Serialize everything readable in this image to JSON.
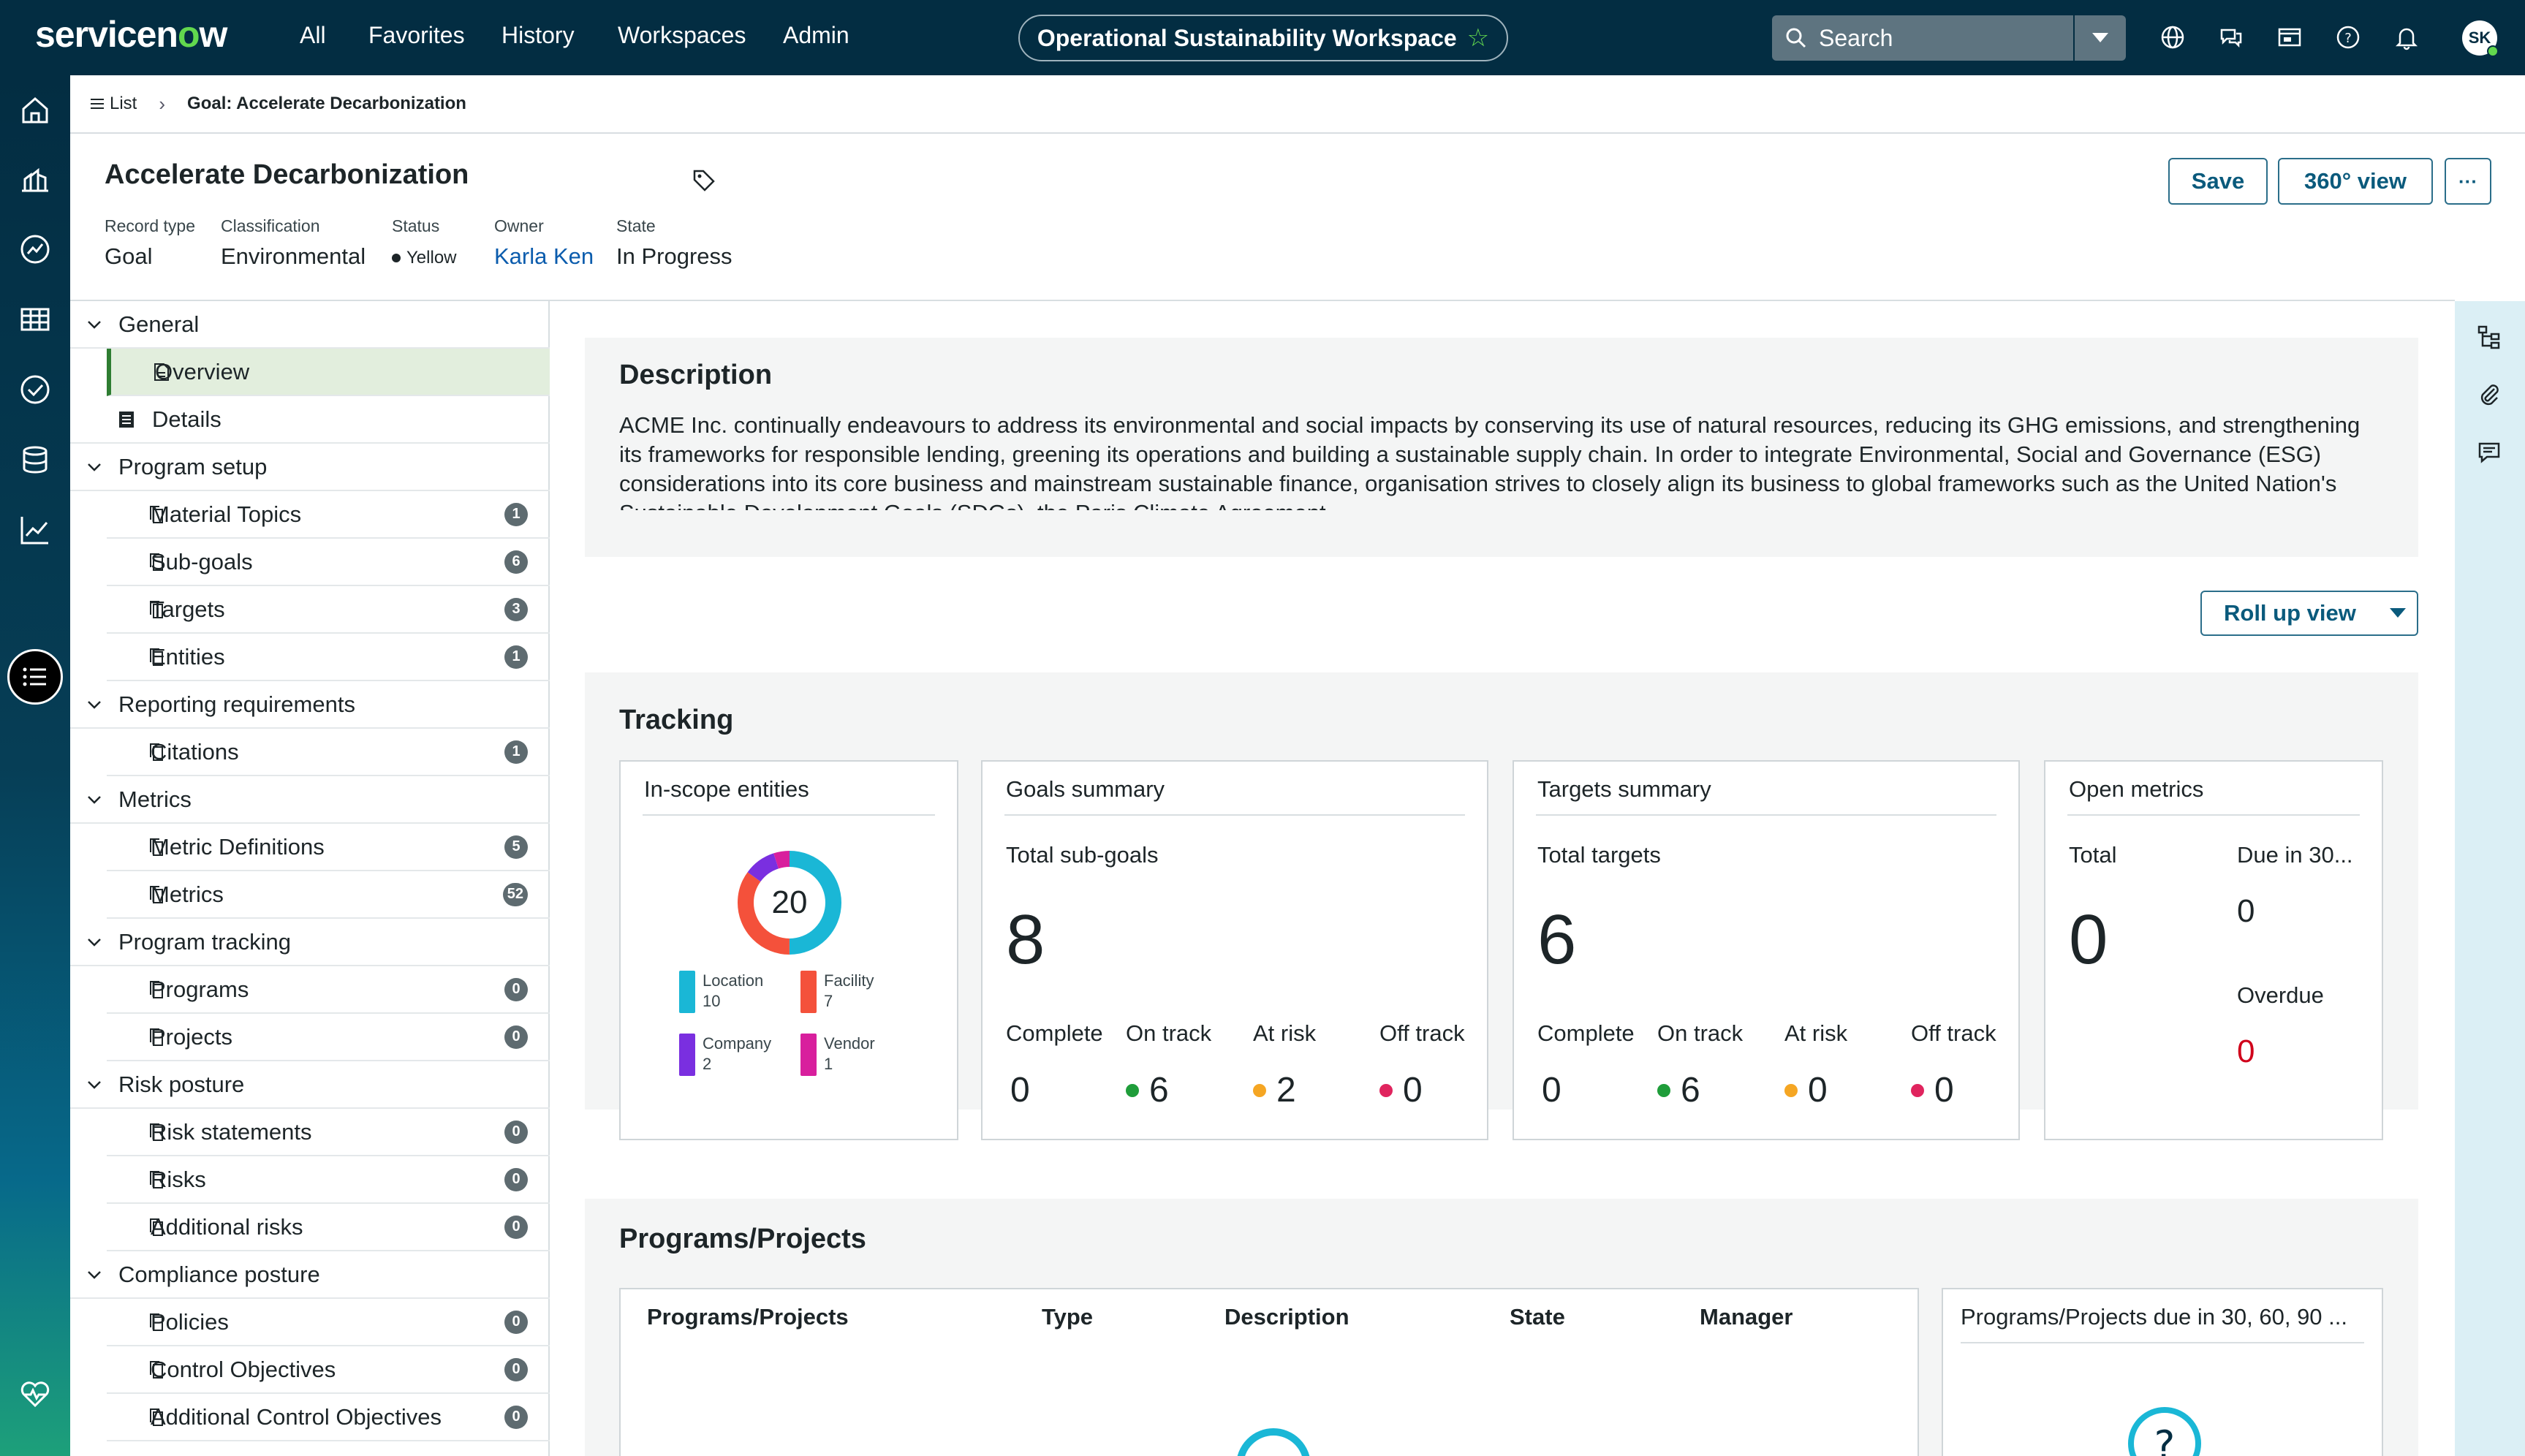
{
  "brand": {
    "logo_pre": "servicen",
    "logo_o": "o",
    "logo_post": "w"
  },
  "topnav": [
    "All",
    "Favorites",
    "History",
    "Workspaces",
    "Admin"
  ],
  "workspace": {
    "title": "Operational Sustainability Workspace"
  },
  "search": {
    "placeholder": "Search"
  },
  "user": {
    "initials": "SK"
  },
  "breadcrumb": {
    "list_label": "List",
    "current": "Goal: Accelerate Decarbonization"
  },
  "record": {
    "title": "Accelerate Decarbonization",
    "fields": [
      {
        "label": "Record type",
        "value": "Goal"
      },
      {
        "label": "Classification",
        "value": "Environmental"
      },
      {
        "label": "Status",
        "value": "Yellow"
      },
      {
        "label": "Owner",
        "value": "Karla Ken"
      },
      {
        "label": "State",
        "value": "In Progress"
      }
    ],
    "save_label": "Save",
    "view360_label": "360° view",
    "more_label": "···"
  },
  "tree": {
    "general": "General",
    "overview": "Overview",
    "details": "Details",
    "program_setup": "Program setup",
    "material_topics": {
      "label": "Material Topics",
      "count": "1"
    },
    "sub_goals": {
      "label": "Sub-goals",
      "count": "6"
    },
    "targets": {
      "label": "Targets",
      "count": "3"
    },
    "entities": {
      "label": "Entities",
      "count": "1"
    },
    "reporting": "Reporting requirements",
    "citations": {
      "label": "Citations",
      "count": "1"
    },
    "metrics_section": "Metrics",
    "metric_defs": {
      "label": "Metric Definitions",
      "count": "5"
    },
    "metrics": {
      "label": "Metrics",
      "count": "52"
    },
    "program_tracking": "Program tracking",
    "programs": {
      "label": "Programs",
      "count": "0"
    },
    "projects": {
      "label": "Projects",
      "count": "0"
    },
    "risk_posture": "Risk posture",
    "risk_statements": {
      "label": "Risk statements",
      "count": "0"
    },
    "risks": {
      "label": "Risks",
      "count": "0"
    },
    "additional_risks": {
      "label": "Additional risks",
      "count": "0"
    },
    "compliance_posture": "Compliance posture",
    "policies": {
      "label": "Policies",
      "count": "0"
    },
    "control_objectives": {
      "label": "Control Objectives",
      "count": "0"
    },
    "additional_control_objectives": {
      "label": "Additional Control Objectives",
      "count": "0"
    }
  },
  "description": {
    "title": "Description",
    "text": "ACME Inc. continually endeavours to address its environmental and social impacts by conserving its use of natural resources, reducing its GHG emissions, and strengthening its frameworks for responsible lending, greening its operations and building a sustainable supply chain. In order to integrate Environmental, Social and Governance (ESG) considerations into its core business and mainstream sustainable finance, organisation strives to closely align its business to global frameworks such as the United Nation's Sustainable Development Goals (SDGs), the Paris Climate Agreement"
  },
  "rollup_label": "Roll up view",
  "tracking": {
    "title": "Tracking",
    "entities": {
      "title": "In-scope entities",
      "total": "20",
      "legend": [
        {
          "name": "Location",
          "value": "10",
          "color": "#1ab7d6"
        },
        {
          "name": "Facility",
          "value": "7",
          "color": "#f4513b"
        },
        {
          "name": "Company",
          "value": "2",
          "color": "#7a2fe0"
        },
        {
          "name": "Vendor",
          "value": "1",
          "color": "#d81f9d"
        }
      ]
    },
    "goals": {
      "title": "Goals summary",
      "total_label": "Total sub-goals",
      "total": "8",
      "complete_label": "Complete",
      "complete": "0",
      "ontrack_label": "On track",
      "ontrack": "6",
      "atrisk_label": "At risk",
      "atrisk": "2",
      "offtrack_label": "Off track",
      "offtrack": "0"
    },
    "targets": {
      "title": "Targets summary",
      "total_label": "Total targets",
      "total": "6",
      "complete_label": "Complete",
      "complete": "0",
      "ontrack_label": "On track",
      "ontrack": "6",
      "atrisk_label": "At risk",
      "atrisk": "0",
      "offtrack_label": "Off track",
      "offtrack": "0"
    },
    "metrics": {
      "title": "Open metrics",
      "total_label": "Total",
      "total": "0",
      "due_label": "Due in 30...",
      "due": "0",
      "overdue_label": "Overdue",
      "overdue": "0"
    }
  },
  "programs": {
    "title": "Programs/Projects",
    "columns": [
      "Programs/Projects",
      "Type",
      "Description",
      "State",
      "Manager"
    ],
    "due_title": "Programs/Projects due in 30, 60, 90 ..."
  },
  "colors": {
    "green": "#1f9d3a",
    "orange": "#f5a623",
    "red": "#e0245e",
    "overdue": "#d0021b",
    "link": "#0b5cad"
  }
}
